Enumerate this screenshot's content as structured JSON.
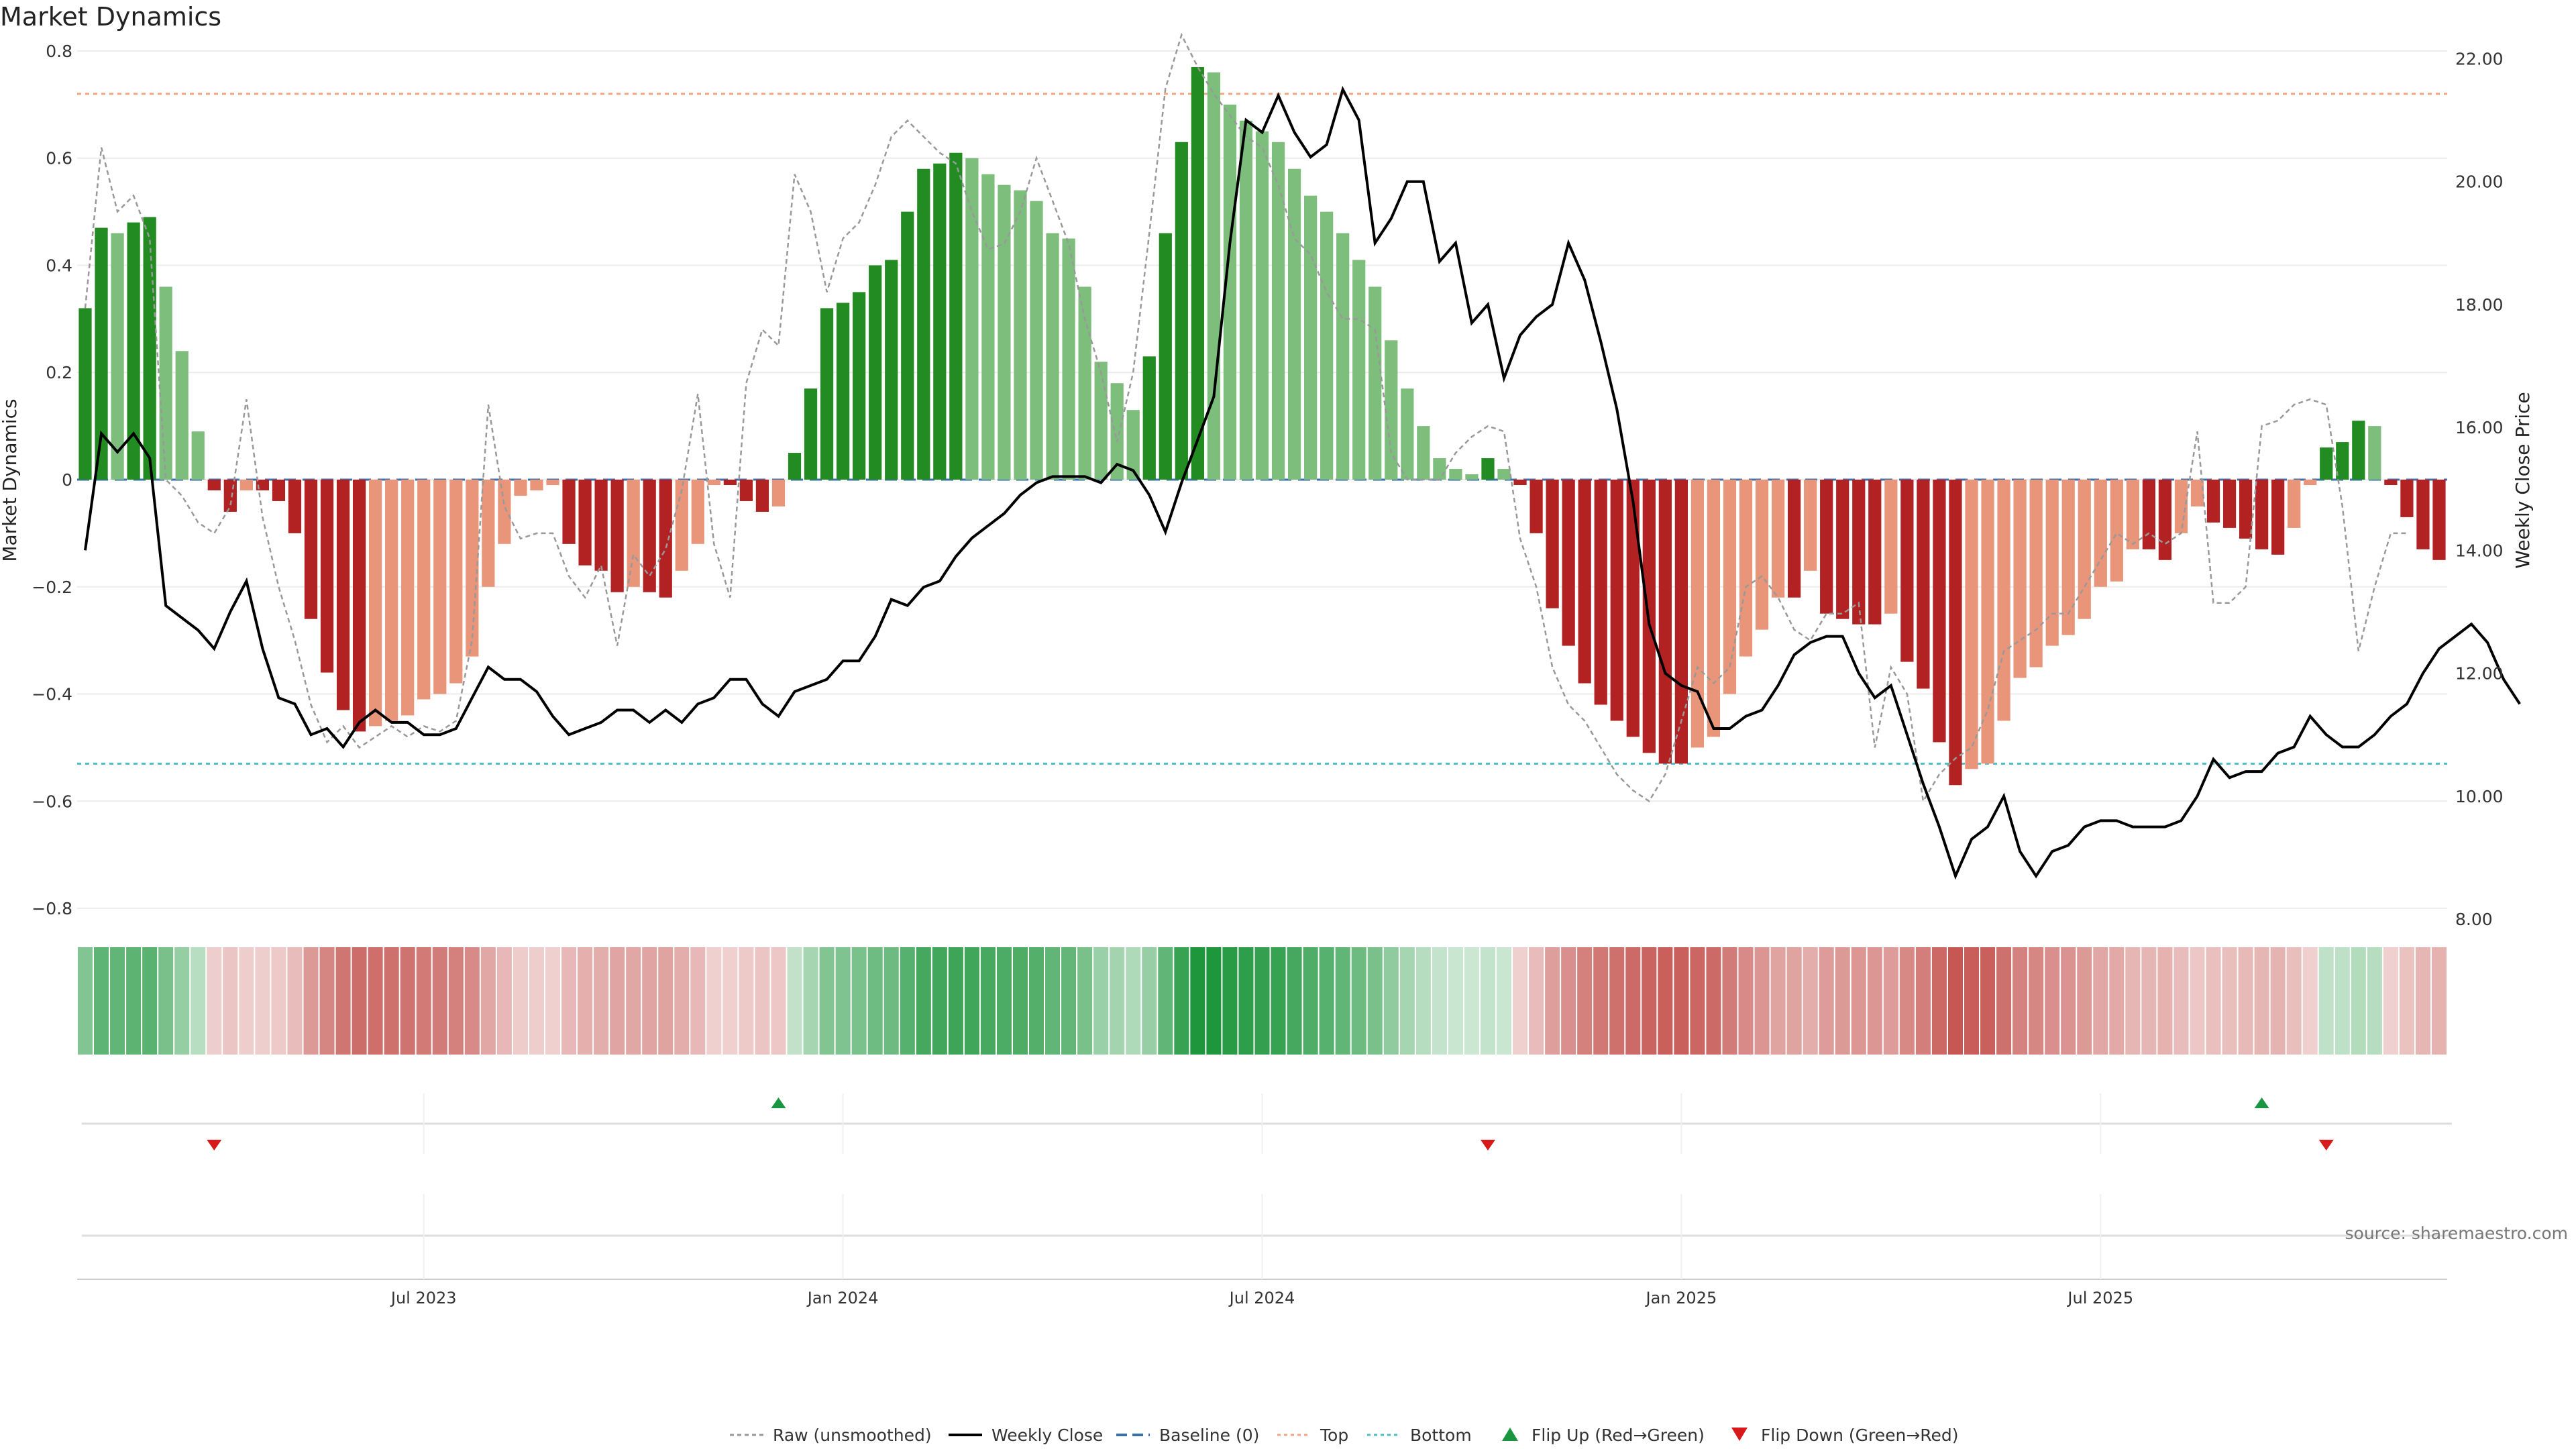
{
  "chart_data": {
    "type": "bar",
    "title": "Market Dynamics",
    "ylabel_left": "Market Dynamics",
    "ylabel_right": "Weekly Close Price",
    "ylim_left": [
      -0.82,
      0.82
    ],
    "ylim_right": [
      8.0,
      22.3
    ],
    "yticks_left": [
      0.8,
      0.6,
      0.4,
      0.2,
      0,
      -0.2,
      -0.4,
      -0.6,
      -0.8
    ],
    "yticks_left_labels": [
      "0.8",
      "0.6",
      "0.4",
      "0.2",
      "0",
      "−0.2",
      "−0.4",
      "−0.6",
      "−0.8"
    ],
    "yticks_right": [
      22,
      20,
      18,
      16,
      14,
      12,
      10,
      8
    ],
    "yticks_right_labels": [
      "22.00",
      "20.00",
      "18.00",
      "16.00",
      "14.00",
      "12.00",
      "10.00",
      "8.00"
    ],
    "x_ticks": [
      {
        "week": 21,
        "label": "Jul 2023"
      },
      {
        "week": 47,
        "label": "Jan 2024"
      },
      {
        "week": 73,
        "label": "Jul 2024"
      },
      {
        "week": 99,
        "label": "Jan 2025"
      },
      {
        "week": 125,
        "label": "Jul 2025"
      }
    ],
    "levels": {
      "top": 0.72,
      "bottom": -0.53,
      "baseline": 0
    },
    "colors": {
      "strong_green": "#228B22",
      "light_green": "#7DBE7D",
      "strong_red": "#B22222",
      "light_red": "#E8957A",
      "raw": "#999999",
      "close": "#000000",
      "baseline": "#3A6FB0",
      "top": "#F4A582",
      "bottom": "#4BBFC4",
      "flip_up": "#1A9641",
      "flip_down": "#D7191C"
    },
    "values": [
      0.32,
      0.47,
      0.46,
      0.48,
      0.49,
      0.36,
      0.24,
      0.09,
      -0.02,
      -0.06,
      -0.02,
      -0.02,
      -0.04,
      -0.1,
      -0.26,
      -0.36,
      -0.43,
      -0.47,
      -0.46,
      -0.45,
      -0.44,
      -0.41,
      -0.4,
      -0.38,
      -0.33,
      -0.2,
      -0.12,
      -0.03,
      -0.02,
      -0.01,
      -0.12,
      -0.16,
      -0.17,
      -0.21,
      -0.2,
      -0.21,
      -0.22,
      -0.17,
      -0.12,
      -0.01,
      -0.01,
      -0.04,
      -0.06,
      -0.05,
      0.05,
      0.17,
      0.32,
      0.33,
      0.35,
      0.4,
      0.41,
      0.5,
      0.58,
      0.59,
      0.61,
      0.6,
      0.57,
      0.55,
      0.54,
      0.52,
      0.46,
      0.45,
      0.36,
      0.22,
      0.18,
      0.13,
      0.23,
      0.46,
      0.63,
      0.77,
      0.76,
      0.7,
      0.67,
      0.65,
      0.63,
      0.58,
      0.53,
      0.5,
      0.46,
      0.41,
      0.36,
      0.26,
      0.17,
      0.1,
      0.04,
      0.02,
      0.01,
      0.04,
      0.02,
      -0.01,
      -0.1,
      -0.24,
      -0.31,
      -0.38,
      -0.42,
      -0.45,
      -0.48,
      -0.51,
      -0.53,
      -0.53,
      -0.5,
      -0.48,
      -0.4,
      -0.33,
      -0.28,
      -0.22,
      -0.22,
      -0.17,
      -0.25,
      -0.26,
      -0.27,
      -0.27,
      -0.25,
      -0.34,
      -0.39,
      -0.49,
      -0.57,
      -0.54,
      -0.53,
      -0.45,
      -0.37,
      -0.35,
      -0.31,
      -0.29,
      -0.26,
      -0.2,
      -0.19,
      -0.13,
      -0.13,
      -0.15,
      -0.1,
      -0.05,
      -0.08,
      -0.09,
      -0.11,
      -0.13,
      -0.14,
      -0.09,
      -0.01,
      0.06,
      0.07,
      0.11,
      0.1,
      -0.01,
      -0.07,
      -0.13,
      -0.15
    ],
    "raw_values": [
      0.32,
      0.62,
      0.5,
      0.53,
      0.45,
      0.0,
      -0.03,
      -0.08,
      -0.1,
      -0.05,
      0.15,
      -0.07,
      -0.2,
      -0.3,
      -0.42,
      -0.49,
      -0.46,
      -0.5,
      -0.48,
      -0.46,
      -0.48,
      -0.46,
      -0.47,
      -0.45,
      -0.3,
      0.14,
      -0.05,
      -0.11,
      -0.1,
      -0.1,
      -0.18,
      -0.22,
      -0.16,
      -0.31,
      -0.14,
      -0.18,
      -0.13,
      -0.02,
      0.16,
      -0.12,
      -0.22,
      0.18,
      0.28,
      0.25,
      0.57,
      0.5,
      0.35,
      0.45,
      0.48,
      0.55,
      0.64,
      0.67,
      0.64,
      0.61,
      0.59,
      0.5,
      0.43,
      0.44,
      0.5,
      0.6,
      0.52,
      0.44,
      0.3,
      0.2,
      0.07,
      0.2,
      0.46,
      0.73,
      0.83,
      0.77,
      0.72,
      0.68,
      0.64,
      0.62,
      0.55,
      0.45,
      0.42,
      0.35,
      0.3,
      0.3,
      0.28,
      0.05,
      0.0,
      0.0,
      0.0,
      0.05,
      0.08,
      0.1,
      0.09,
      -0.11,
      -0.2,
      -0.35,
      -0.42,
      -0.45,
      -0.5,
      -0.55,
      -0.58,
      -0.6,
      -0.55,
      -0.45,
      -0.35,
      -0.38,
      -0.35,
      -0.2,
      -0.18,
      -0.22,
      -0.28,
      -0.3,
      -0.25,
      -0.25,
      -0.23,
      -0.5,
      -0.35,
      -0.4,
      -0.6,
      -0.55,
      -0.52,
      -0.5,
      -0.43,
      -0.32,
      -0.3,
      -0.28,
      -0.25,
      -0.25,
      -0.2,
      -0.15,
      -0.1,
      -0.12,
      -0.1,
      -0.12,
      -0.1,
      0.09,
      -0.23,
      -0.23,
      -0.2,
      0.1,
      0.11,
      0.14,
      0.15,
      0.14,
      -0.05,
      -0.32,
      -0.2,
      -0.1,
      -0.1
    ],
    "weekly_close": [
      14.0,
      15.9,
      15.6,
      15.9,
      15.5,
      13.1,
      12.9,
      12.7,
      12.4,
      13.0,
      13.5,
      12.4,
      11.6,
      11.5,
      11.0,
      11.1,
      10.8,
      11.2,
      11.4,
      11.2,
      11.2,
      11.0,
      11.0,
      11.1,
      11.6,
      12.1,
      11.9,
      11.9,
      11.7,
      11.3,
      11.0,
      11.1,
      11.2,
      11.4,
      11.4,
      11.2,
      11.4,
      11.2,
      11.5,
      11.6,
      11.9,
      11.9,
      11.5,
      11.3,
      11.7,
      11.8,
      11.9,
      12.2,
      12.2,
      12.6,
      13.2,
      13.1,
      13.4,
      13.5,
      13.9,
      14.2,
      14.4,
      14.6,
      14.9,
      15.1,
      15.2,
      15.2,
      15.2,
      15.1,
      15.4,
      15.3,
      14.9,
      14.3,
      15.1,
      15.8,
      16.5,
      19.0,
      21.0,
      20.8,
      21.4,
      20.8,
      20.4,
      20.6,
      21.5,
      21.0,
      19.0,
      19.4,
      20.0,
      20.0,
      18.7,
      19.0,
      17.7,
      18.0,
      16.8,
      17.5,
      17.8,
      18.0,
      19.0,
      18.4,
      17.4,
      16.3,
      14.8,
      12.8,
      12.0,
      11.8,
      11.7,
      11.1,
      11.1,
      11.3,
      11.4,
      11.8,
      12.3,
      12.5,
      12.6,
      12.6,
      12.0,
      11.6,
      11.8,
      11.0,
      10.2,
      9.5,
      8.7,
      9.3,
      9.5,
      10.0,
      9.1,
      8.7,
      9.1,
      9.2,
      9.5,
      9.6,
      9.6,
      9.5,
      9.5,
      9.5,
      9.6,
      10.0,
      10.6,
      10.3,
      10.4,
      10.4,
      10.7,
      10.8,
      11.3,
      11.0,
      10.8,
      10.8,
      11.0,
      11.3,
      11.5,
      12.0,
      12.4,
      12.6,
      12.8,
      12.5,
      11.9,
      11.5
    ],
    "heatmap_strip": "one cell per week, green for positive and red for negative Market Dynamics, darker for larger magnitude",
    "flip_up": [
      43,
      135
    ],
    "flip_down": [
      8,
      87,
      139
    ],
    "legend_position": "bottom-center",
    "source_text": "source: sharemaestro.com"
  },
  "legend": [
    {
      "key": "raw",
      "label": "Raw (unsmoothed)"
    },
    {
      "key": "close",
      "label": "Weekly Close"
    },
    {
      "key": "baseline",
      "label": "Baseline (0)"
    },
    {
      "key": "top",
      "label": "Top"
    },
    {
      "key": "bottom",
      "label": "Bottom"
    },
    {
      "key": "flip_up",
      "label": "Flip Up (Red→Green)"
    },
    {
      "key": "flip_down",
      "label": "Flip Down (Green→Red)"
    }
  ]
}
